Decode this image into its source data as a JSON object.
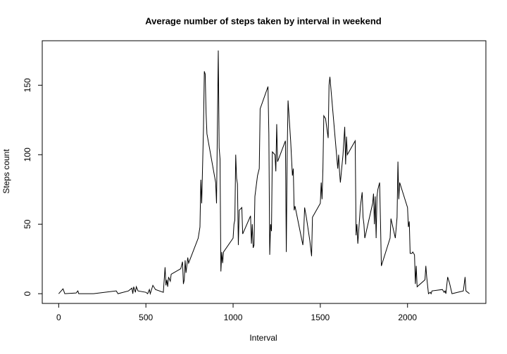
{
  "chart_data": {
    "type": "line",
    "title": "Average number of steps taken by interval in weekend",
    "x_label": "Interval",
    "y_label": "Steps count",
    "x": [
      0,
      25,
      35,
      100,
      110,
      115,
      200,
      330,
      340,
      400,
      420,
      425,
      430,
      440,
      445,
      455,
      500,
      510,
      520,
      525,
      540,
      555,
      600,
      610,
      615,
      620,
      625,
      630,
      640,
      645,
      700,
      710,
      715,
      720,
      725,
      730,
      740,
      745,
      800,
      810,
      815,
      820,
      830,
      835,
      840,
      845,
      850,
      900,
      905,
      910,
      915,
      920,
      925,
      930,
      935,
      940,
      945,
      1000,
      1005,
      1010,
      1015,
      1020,
      1025,
      1030,
      1035,
      1050,
      1055,
      1100,
      1105,
      1110,
      1115,
      1120,
      1125,
      1140,
      1150,
      1155,
      1200,
      1205,
      1210,
      1215,
      1220,
      1225,
      1240,
      1245,
      1250,
      1255,
      1300,
      1305,
      1310,
      1315,
      1330,
      1340,
      1345,
      1350,
      1355,
      1400,
      1405,
      1410,
      1420,
      1440,
      1450,
      1455,
      1500,
      1505,
      1510,
      1515,
      1520,
      1530,
      1545,
      1550,
      1555,
      1600,
      1605,
      1610,
      1615,
      1630,
      1640,
      1645,
      1650,
      1655,
      1700,
      1705,
      1710,
      1715,
      1730,
      1740,
      1745,
      1750,
      1755,
      1800,
      1805,
      1810,
      1815,
      1820,
      1825,
      1830,
      1840,
      1845,
      1850,
      1855,
      1900,
      1905,
      1930,
      1940,
      1945,
      1950,
      1955,
      2000,
      2005,
      2010,
      2015,
      2025,
      2030,
      2040,
      2045,
      2050,
      2055,
      2100,
      2105,
      2110,
      2120,
      2130,
      2135,
      2140,
      2200,
      2210,
      2215,
      2220,
      2230,
      2240,
      2255,
      2320,
      2330,
      2335,
      2355
    ],
    "series": [
      {
        "name": "steps",
        "color": "#000000",
        "values": [
          0,
          3.5,
          0,
          0.5,
          2,
          0,
          0,
          2,
          0,
          2,
          4,
          0,
          5,
          1,
          5,
          2,
          1,
          0,
          3,
          0,
          6,
          3,
          1,
          19,
          6,
          10,
          5,
          12,
          9,
          14,
          18,
          23,
          7,
          10,
          24,
          15,
          26,
          22,
          40,
          48,
          82,
          65,
          118,
          160,
          158,
          130,
          115,
          80,
          65,
          120,
          175,
          105,
          97,
          16,
          30,
          22,
          30,
          40,
          50,
          53,
          100,
          83,
          79,
          35,
          60,
          62,
          43,
          56,
          36,
          50,
          33,
          35,
          70,
          85,
          90,
          133,
          149,
          115,
          28,
          50,
          45,
          102,
          100,
          88,
          122,
          95,
          110,
          30,
          100,
          139,
          110,
          85,
          90,
          60,
          63,
          35,
          45,
          62,
          55,
          38,
          27,
          55,
          65,
          80,
          68,
          90,
          128,
          126,
          112,
          150,
          156,
          90,
          100,
          88,
          80,
          100,
          120,
          93,
          113,
          100,
          110,
          42,
          50,
          36,
          63,
          73,
          55,
          50,
          40,
          65,
          72,
          50,
          70,
          40,
          70,
          75,
          80,
          52,
          20,
          22,
          40,
          54,
          40,
          55,
          95,
          68,
          80,
          62,
          48,
          52,
          29,
          29,
          30,
          28,
          7,
          20,
          5,
          10,
          20,
          12,
          0,
          1,
          0,
          2,
          3,
          1,
          2,
          0,
          12,
          8,
          0,
          2,
          12,
          2,
          0
        ]
      }
    ],
    "xlim": [
      -94.2,
      2449.2
    ],
    "ylim": [
      -7,
      182
    ],
    "xticks": [
      0,
      500,
      1000,
      1500,
      2000
    ],
    "yticks": [
      0,
      50,
      100,
      150
    ]
  }
}
